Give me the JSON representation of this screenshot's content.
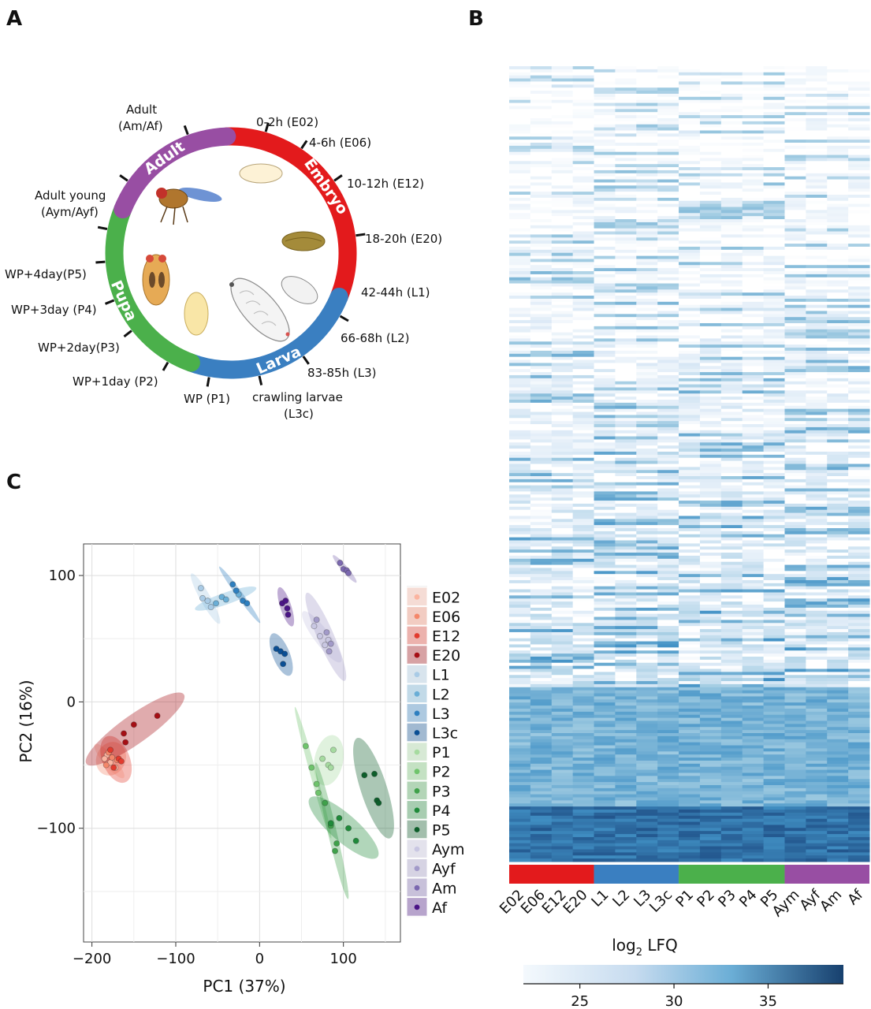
{
  "panels": {
    "a": "A",
    "b": "B",
    "c": "C"
  },
  "colors": {
    "embryo": "#e31a1c",
    "larva": "#3a7fc1",
    "pupa": "#4bb04b",
    "adult": "#984ea3"
  },
  "lifecycle": {
    "stages": [
      {
        "label": "Embryo",
        "color": "#e31a1c"
      },
      {
        "label": "Larva",
        "color": "#3a7fc1"
      },
      {
        "label": "Pupa",
        "color": "#4bb04b"
      },
      {
        "label": "Adult",
        "color": "#984ea3"
      }
    ],
    "timepoints": [
      {
        "id": "E02",
        "line1": "0-2h (E02)",
        "line2": ""
      },
      {
        "id": "E06",
        "line1": "4-6h (E06)",
        "line2": ""
      },
      {
        "id": "E12",
        "line1": "10-12h (E12)",
        "line2": ""
      },
      {
        "id": "E20",
        "line1": "18-20h (E20)",
        "line2": ""
      },
      {
        "id": "L1",
        "line1": "42-44h (L1)",
        "line2": ""
      },
      {
        "id": "L2",
        "line1": "66-68h (L2)",
        "line2": ""
      },
      {
        "id": "L3",
        "line1": "83-85h (L3)",
        "line2": ""
      },
      {
        "id": "L3c",
        "line1": "crawling larvae",
        "line2": "(L3c)"
      },
      {
        "id": "P1",
        "line1": "WP (P1)",
        "line2": ""
      },
      {
        "id": "P2",
        "line1": "WP+1day (P2)",
        "line2": ""
      },
      {
        "id": "P3",
        "line1": "WP+2day(P3)",
        "line2": ""
      },
      {
        "id": "P4",
        "line1": "WP+3day (P4)",
        "line2": ""
      },
      {
        "id": "P5",
        "line1": "WP+4day(P5)",
        "line2": ""
      },
      {
        "id": "Ay",
        "line1": "Adult young",
        "line2": "(Aym/Ayf)"
      },
      {
        "id": "A",
        "line1": "Adult",
        "line2": "(Am/Af)"
      }
    ]
  },
  "heatmap": {
    "columns": [
      "E02",
      "E06",
      "E12",
      "E20",
      "L1",
      "L2",
      "L3",
      "L3c",
      "P1",
      "P2",
      "P3",
      "P4",
      "P5",
      "Aym",
      "Ayf",
      "Am",
      "Af"
    ],
    "groups": [
      {
        "name": "Embryo",
        "count": 4,
        "color": "#e31a1c"
      },
      {
        "name": "Larva",
        "count": 4,
        "color": "#3a7fc1"
      },
      {
        "name": "Pupa",
        "count": 5,
        "color": "#4bb04b"
      },
      {
        "name": "Adult",
        "count": 4,
        "color": "#984ea3"
      }
    ],
    "colorbar": {
      "title": "log",
      "sub": "2",
      "title_rest": " LFQ",
      "min": 22,
      "max": 39,
      "ticks": [
        25,
        30,
        35
      ]
    }
  },
  "chart_data": {
    "type": "scatter",
    "xlabel": "PC1 (37%)",
    "ylabel": "PC2 (16%)",
    "xlim": [
      -210,
      168
    ],
    "ylim": [
      -190,
      125
    ],
    "xticks": [
      -200,
      -100,
      0,
      100
    ],
    "yticks": [
      100,
      0,
      -100
    ],
    "grid": true,
    "legend_position": "right",
    "series": [
      {
        "name": "E02",
        "color": "#fbb4a0",
        "points": [
          [
            -182,
            -42
          ],
          [
            -178,
            -48
          ],
          [
            -185,
            -45
          ],
          [
            -172,
            -52
          ]
        ]
      },
      {
        "name": "E06",
        "color": "#f4876a",
        "points": [
          [
            -180,
            -40
          ],
          [
            -176,
            -44
          ],
          [
            -170,
            -46
          ],
          [
            -183,
            -50
          ]
        ]
      },
      {
        "name": "E12",
        "color": "#e23b2e",
        "points": [
          [
            -178,
            -38
          ],
          [
            -168,
            -45
          ],
          [
            -174,
            -52
          ],
          [
            -165,
            -47
          ]
        ]
      },
      {
        "name": "E20",
        "color": "#a50f15",
        "points": [
          [
            -162,
            -25
          ],
          [
            -150,
            -18
          ],
          [
            -122,
            -11
          ],
          [
            -160,
            -32
          ]
        ]
      },
      {
        "name": "L1",
        "color": "#a9cbe6",
        "points": [
          [
            -70,
            90
          ],
          [
            -62,
            80
          ],
          [
            -58,
            75
          ],
          [
            -68,
            82
          ]
        ]
      },
      {
        "name": "L2",
        "color": "#6aaed6",
        "points": [
          [
            -52,
            78
          ],
          [
            -45,
            83
          ],
          [
            -40,
            81
          ],
          [
            -25,
            85
          ]
        ]
      },
      {
        "name": "L3",
        "color": "#2e7fbf",
        "points": [
          [
            -32,
            93
          ],
          [
            -28,
            88
          ],
          [
            -20,
            80
          ],
          [
            -15,
            78
          ]
        ]
      },
      {
        "name": "L3c",
        "color": "#0b4f94",
        "points": [
          [
            20,
            42
          ],
          [
            25,
            40
          ],
          [
            28,
            30
          ],
          [
            30,
            38
          ]
        ]
      },
      {
        "name": "P1",
        "color": "#a6dba0",
        "points": [
          [
            75,
            -45
          ],
          [
            82,
            -50
          ],
          [
            88,
            -38
          ],
          [
            85,
            -52
          ]
        ]
      },
      {
        "name": "P2",
        "color": "#6fc46c",
        "points": [
          [
            55,
            -35
          ],
          [
            62,
            -52
          ],
          [
            68,
            -65
          ],
          [
            70,
            -72
          ]
        ]
      },
      {
        "name": "P3",
        "color": "#3fa14a",
        "points": [
          [
            78,
            -80
          ],
          [
            85,
            -98
          ],
          [
            90,
            -118
          ],
          [
            92,
            -112
          ]
        ]
      },
      {
        "name": "P4",
        "color": "#1f8a3a",
        "points": [
          [
            85,
            -96
          ],
          [
            95,
            -92
          ],
          [
            106,
            -100
          ],
          [
            115,
            -110
          ]
        ]
      },
      {
        "name": "P5",
        "color": "#0d5e2a",
        "points": [
          [
            125,
            -58
          ],
          [
            137,
            -57
          ],
          [
            140,
            -78
          ],
          [
            142,
            -80
          ]
        ]
      },
      {
        "name": "Aym",
        "color": "#c9c7e2",
        "points": [
          [
            65,
            60
          ],
          [
            72,
            52
          ],
          [
            78,
            45
          ],
          [
            82,
            49
          ]
        ]
      },
      {
        "name": "Ayf",
        "color": "#a29ac9",
        "points": [
          [
            68,
            65
          ],
          [
            80,
            55
          ],
          [
            83,
            40
          ],
          [
            85,
            46
          ]
        ]
      },
      {
        "name": "Am",
        "color": "#7b68b0",
        "points": [
          [
            96,
            110
          ],
          [
            100,
            105
          ],
          [
            104,
            104
          ],
          [
            106,
            102
          ]
        ]
      },
      {
        "name": "Af",
        "color": "#4a1486",
        "points": [
          [
            27,
            78
          ],
          [
            31,
            80
          ],
          [
            33,
            74
          ],
          [
            34,
            69
          ]
        ]
      }
    ]
  }
}
